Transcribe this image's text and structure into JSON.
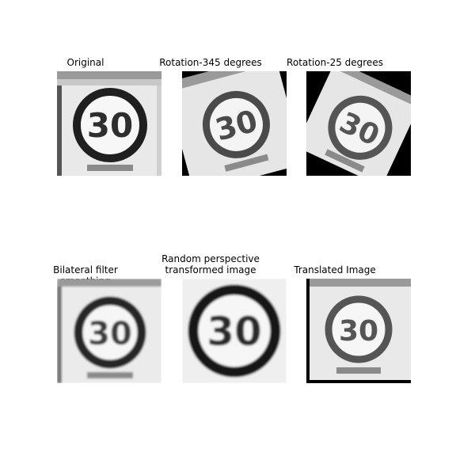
{
  "panels": [
    {
      "title": "Original"
    },
    {
      "title": "Rotation-345 degrees"
    },
    {
      "title": "Rotation-25 degrees"
    },
    {
      "title": "Bilateral filter smoothing"
    },
    {
      "title": "Random perspective\n transformed image"
    },
    {
      "title": "Translated Image"
    }
  ],
  "sign": {
    "number": "30"
  }
}
